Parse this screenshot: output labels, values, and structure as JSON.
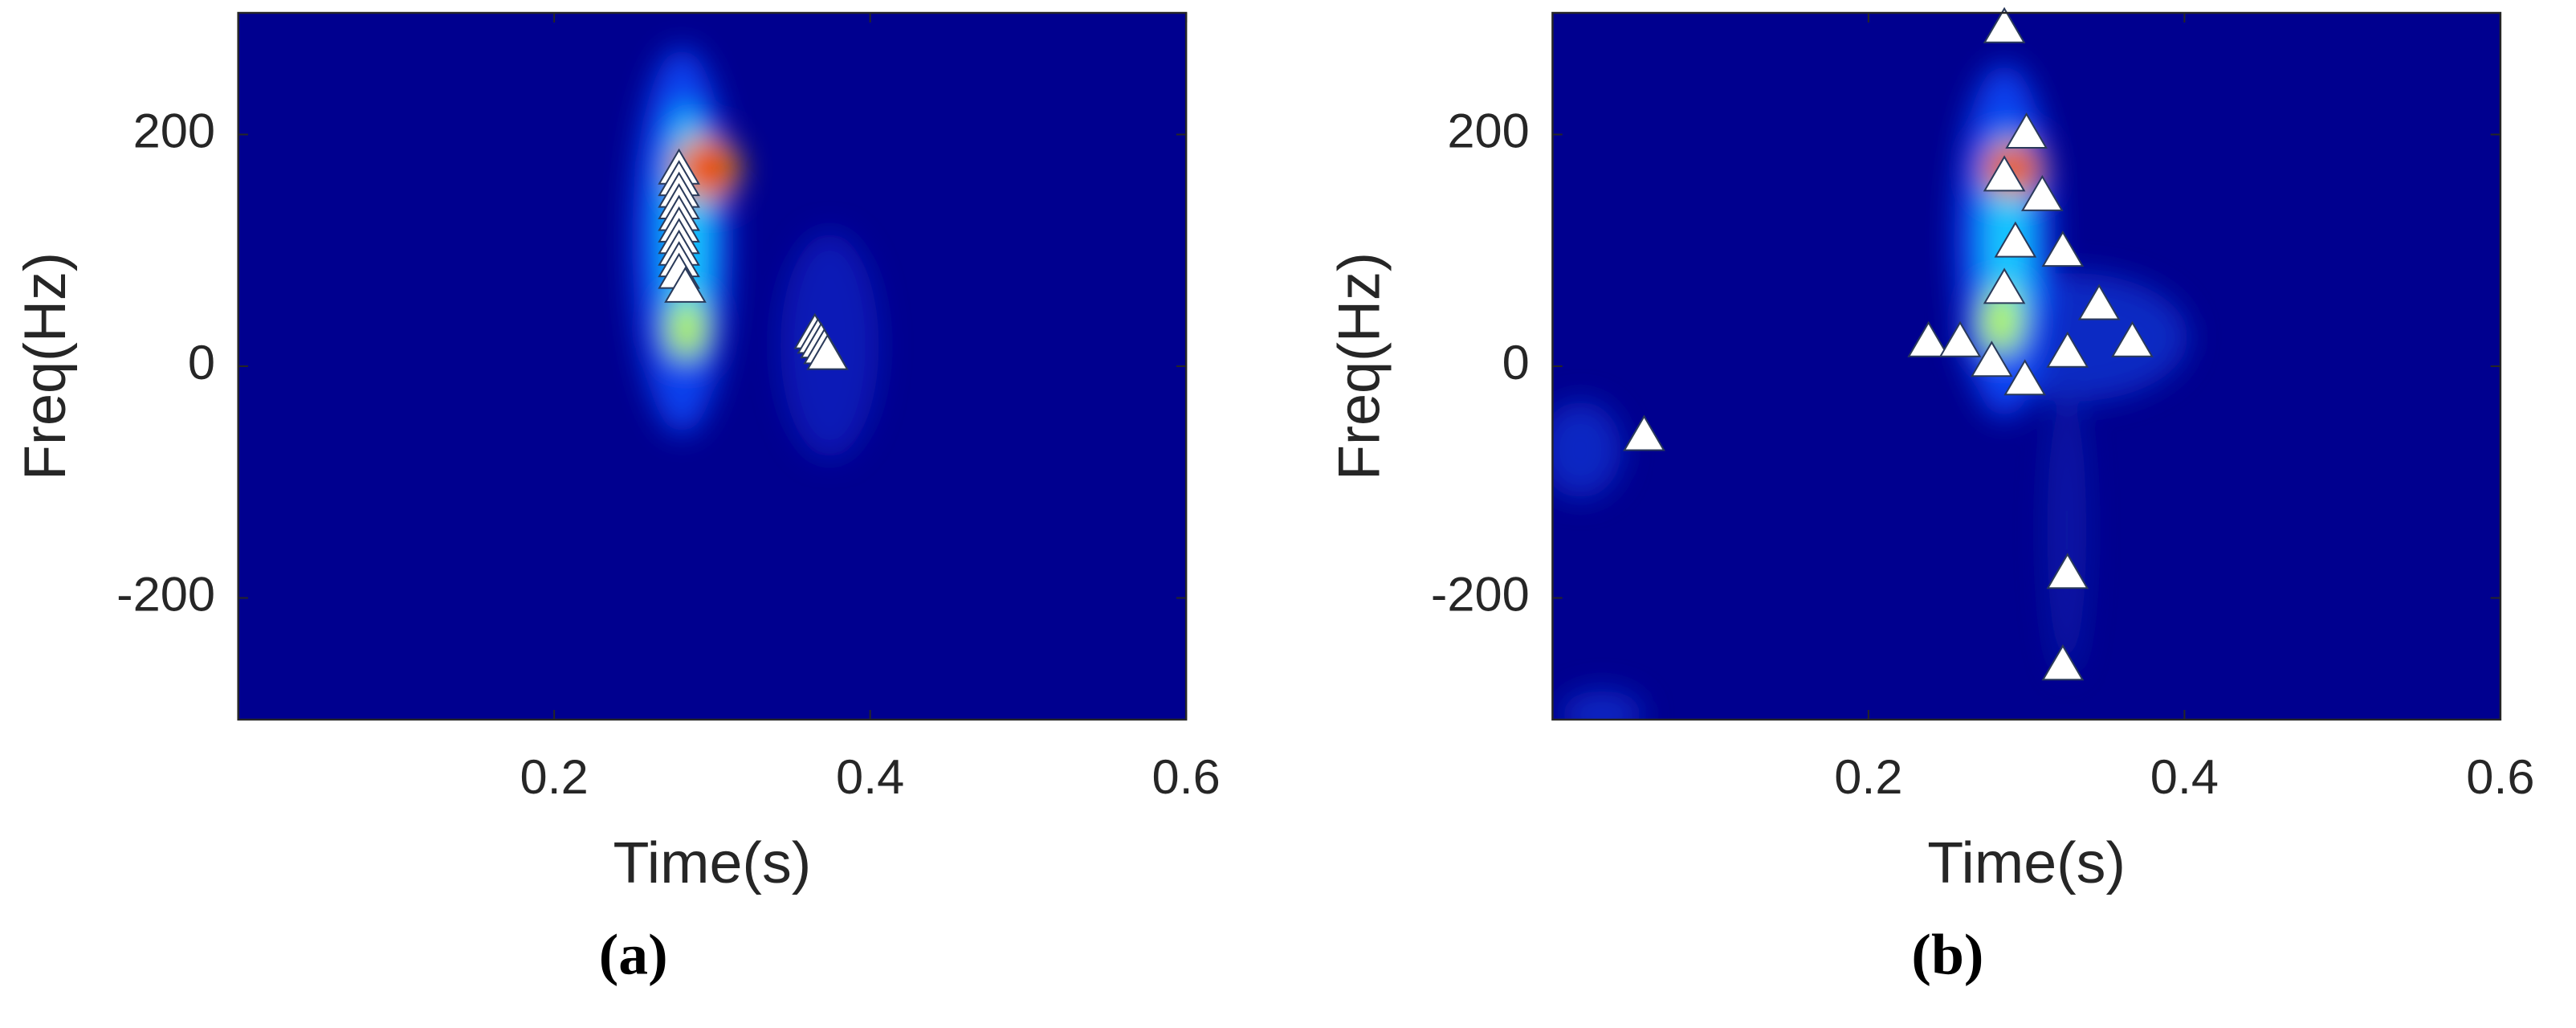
{
  "chart_data": [
    {
      "type": "scatter",
      "panel_label": "(a)",
      "xlabel": "Time(s)",
      "ylabel": "Freq(Hz)",
      "xlim": [
        0,
        0.6
      ],
      "ylim": [
        -305,
        305
      ],
      "xticks": [
        0.2,
        0.4,
        0.6
      ],
      "yticks": [
        -200,
        0,
        200
      ],
      "marker": "triangle",
      "color": "#ffffff",
      "x": [
        0.279,
        0.279,
        0.279,
        0.279,
        0.279,
        0.279,
        0.279,
        0.279,
        0.279,
        0.279,
        0.283,
        0.365,
        0.367,
        0.369,
        0.371,
        0.373
      ],
      "y": [
        170,
        160,
        150,
        140,
        130,
        120,
        110,
        100,
        90,
        80,
        68,
        28,
        24,
        20,
        15,
        10
      ]
    },
    {
      "type": "scatter",
      "panel_label": "(b)",
      "xlabel": "Time(s)",
      "ylabel": "Freq(Hz)",
      "xlim": [
        0,
        0.6
      ],
      "ylim": [
        -305,
        305
      ],
      "xticks": [
        0.2,
        0.4,
        0.6
      ],
      "yticks": [
        -200,
        0,
        200
      ],
      "marker": "triangle",
      "color": "#ffffff",
      "x": [
        0.286,
        0.3,
        0.286,
        0.31,
        0.293,
        0.323,
        0.286,
        0.346,
        0.238,
        0.258,
        0.367,
        0.278,
        0.326,
        0.299,
        0.058,
        0.326,
        0.323
      ],
      "y": [
        292,
        201,
        164,
        147,
        107,
        99,
        67,
        53,
        21,
        21,
        21,
        4,
        12,
        -12,
        -60,
        -179,
        -258
      ]
    }
  ]
}
